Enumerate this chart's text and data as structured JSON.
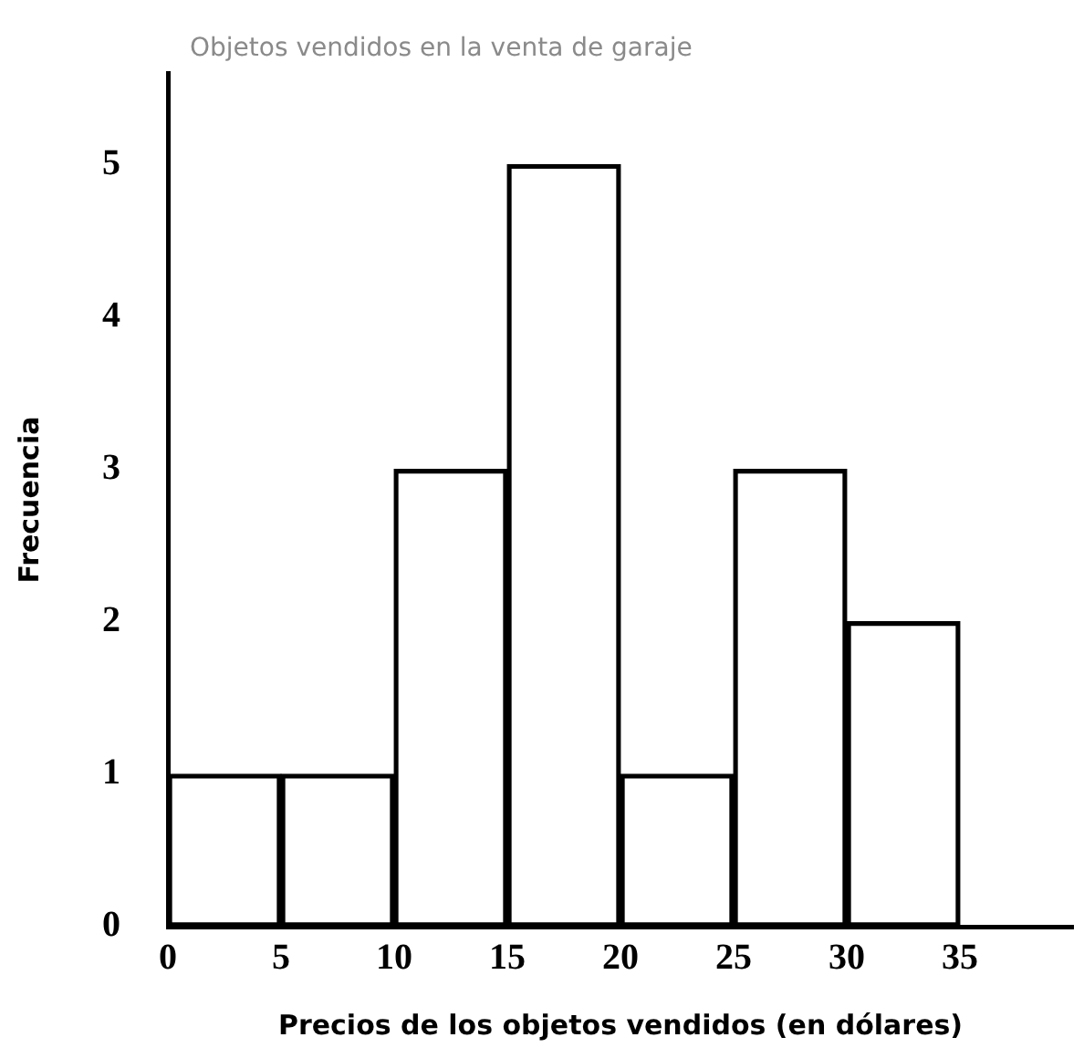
{
  "chart_data": {
    "type": "histogram",
    "title": "Objetos vendidos en la venta de garaje",
    "xlabel": "Precios de los objetos vendidos (en dólares)",
    "ylabel": "Frecuencia",
    "bins": [
      0,
      5,
      10,
      15,
      20,
      25,
      30,
      35
    ],
    "values": [
      1,
      1,
      3,
      5,
      1,
      3,
      2
    ],
    "color": "#000000",
    "xlim": [
      0,
      40
    ],
    "xticks": [
      0,
      5,
      10,
      15,
      20,
      25,
      30,
      35
    ],
    "ylim": [
      0,
      5.6
    ],
    "yticks": [
      0,
      1,
      2,
      3,
      4,
      5
    ],
    "grid": false,
    "legend": false
  }
}
